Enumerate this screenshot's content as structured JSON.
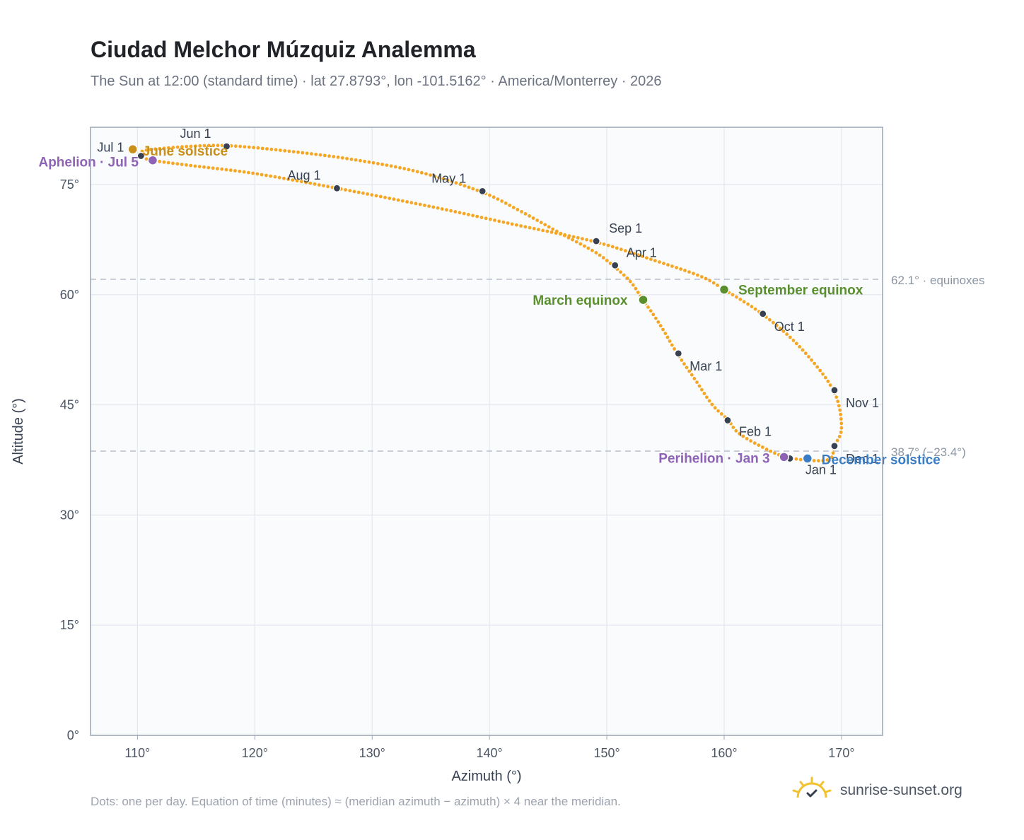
{
  "header": {
    "title": "Ciudad Melchor Múzquiz Analemma",
    "subtitle": "The Sun at 12:00 (standard time) · lat 27.8793°, lon -101.5162° · America/Monterrey · 2026"
  },
  "footer": {
    "note": "Dots: one per day. Equation of time (minutes) ≈ (meridian azimuth − azimuth) × 4 near the meridian.",
    "brand": "sunrise-sunset.org"
  },
  "colors": {
    "curve": "#f5a623",
    "month_dot": "#374151",
    "equinox": "#5a8f2e",
    "june_solstice": "#c8901a",
    "december_solstice": "#3b7dc4",
    "apsis": "#8e63b5",
    "reference_line": "#b8c0cc",
    "plot_bg": "#f9fbfd",
    "grid": "#e3e8ee"
  },
  "chart_data": {
    "type": "scatter",
    "xlabel": "Azimuth (°)",
    "ylabel": "Altitude (°)",
    "xlim": [
      106,
      173.5
    ],
    "ylim": [
      0,
      82.8
    ],
    "xticks": [
      110,
      120,
      130,
      140,
      150,
      160,
      170
    ],
    "yticks": [
      0,
      15,
      30,
      45,
      60,
      75
    ],
    "xtick_labels": [
      "110°",
      "120°",
      "130°",
      "140°",
      "150°",
      "160°",
      "170°"
    ],
    "ytick_labels": [
      "0°",
      "15°",
      "30°",
      "45°",
      "60°",
      "75°"
    ],
    "grid": true,
    "series": [
      {
        "points": [
          [
            168.8,
            37.5
          ],
          [
            165.5,
            37.8
          ],
          [
            163.2,
            39.3
          ],
          [
            161.2,
            41.2
          ],
          [
            160.3,
            43.0
          ],
          [
            159.0,
            45.0
          ],
          [
            157.5,
            48.5
          ],
          [
            156.0,
            52.0
          ],
          [
            154.5,
            56.0
          ],
          [
            153.0,
            59.5
          ],
          [
            152.0,
            61.8
          ],
          [
            150.5,
            64.0
          ],
          [
            149.0,
            65.8
          ],
          [
            146.0,
            68.4
          ],
          [
            142.5,
            71.5
          ],
          [
            139.3,
            74.0
          ],
          [
            134.0,
            76.7
          ],
          [
            128.0,
            78.5
          ],
          [
            122.0,
            79.7
          ],
          [
            117.6,
            80.3
          ],
          [
            114.5,
            80.2
          ],
          [
            112.0,
            79.9
          ],
          [
            110.5,
            79.6
          ],
          [
            110.2,
            78.9
          ],
          [
            111.3,
            78.3
          ],
          [
            114.5,
            77.6
          ],
          [
            120.0,
            76.5
          ],
          [
            127.0,
            74.5
          ],
          [
            135.0,
            72.0
          ],
          [
            142.0,
            69.6
          ],
          [
            149.0,
            67.2
          ],
          [
            154.0,
            64.7
          ],
          [
            158.0,
            62.5
          ],
          [
            160.0,
            60.7
          ],
          [
            163.3,
            57.3
          ],
          [
            166.5,
            52.8
          ],
          [
            169.3,
            47.0
          ],
          [
            170.0,
            42.0
          ],
          [
            169.4,
            39.4
          ],
          [
            168.8,
            37.5
          ]
        ]
      }
    ],
    "month_markers": [
      {
        "label": "Jan 1",
        "az": 165.6,
        "alt": 37.7
      },
      {
        "label": "Feb 1",
        "az": 160.3,
        "alt": 42.9
      },
      {
        "label": "Mar 1",
        "az": 156.1,
        "alt": 52.0
      },
      {
        "label": "Apr 1",
        "az": 150.7,
        "alt": 64.0
      },
      {
        "label": "May 1",
        "az": 139.4,
        "alt": 74.1
      },
      {
        "label": "Jun 1",
        "az": 117.6,
        "alt": 80.2
      },
      {
        "label": "Jul 1",
        "az": 110.3,
        "alt": 78.9
      },
      {
        "label": "Aug 1",
        "az": 127.0,
        "alt": 74.5
      },
      {
        "label": "Sep 1",
        "az": 149.1,
        "alt": 67.3
      },
      {
        "label": "Oct 1",
        "az": 163.3,
        "alt": 57.4
      },
      {
        "label": "Nov 1",
        "az": 169.4,
        "alt": 47.0
      },
      {
        "label": "Dec 1",
        "az": 169.4,
        "alt": 39.4
      }
    ],
    "events": [
      {
        "label": "March equinox",
        "az": 153.1,
        "alt": 59.3,
        "color_key": "equinox",
        "anchor": "end"
      },
      {
        "label": "September equinox",
        "az": 160.0,
        "alt": 60.7,
        "color_key": "equinox",
        "anchor": "start"
      },
      {
        "label": "June solstice",
        "az": 109.6,
        "alt": 79.8,
        "color_key": "june_solstice",
        "anchor": "start"
      },
      {
        "label": "December solstice",
        "az": 167.1,
        "alt": 37.7,
        "color_key": "december_solstice",
        "anchor": "start"
      },
      {
        "label": "Aphelion · Jul 5",
        "az": 111.3,
        "alt": 78.3,
        "color_key": "apsis",
        "anchor": "end"
      },
      {
        "label": "Perihelion · Jan 3",
        "az": 165.1,
        "alt": 37.9,
        "color_key": "apsis",
        "anchor": "end"
      }
    ],
    "reference_lines": [
      {
        "alt": 62.1,
        "label": "62.1° · equinoxes"
      },
      {
        "alt": 38.7,
        "label": "38.7° (−23.4°)"
      }
    ]
  }
}
